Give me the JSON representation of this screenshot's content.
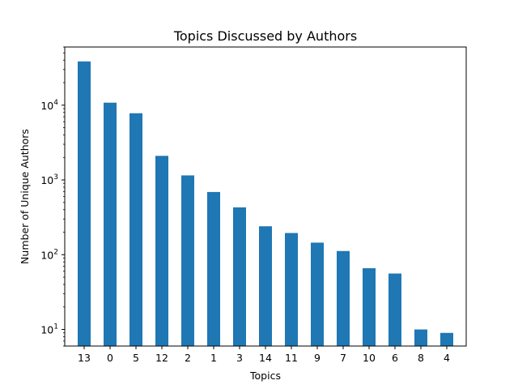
{
  "chart_data": {
    "type": "bar",
    "title": "Topics Discussed by Authors",
    "xlabel": "Topics",
    "ylabel": "Number of Unique Authors",
    "yscale": "log",
    "ylim": [
      6,
      60000
    ],
    "ytick_values": [
      10,
      100,
      1000,
      10000
    ],
    "ytick_base": "10",
    "ytick_exponents": [
      "1",
      "2",
      "3",
      "4"
    ],
    "grid": false,
    "bar_color": "#1f77b4",
    "categories": [
      "13",
      "0",
      "5",
      "12",
      "2",
      "1",
      "3",
      "14",
      "11",
      "9",
      "7",
      "10",
      "6",
      "8",
      "4"
    ],
    "values": [
      38500,
      10800,
      7800,
      2100,
      1150,
      690,
      430,
      240,
      195,
      145,
      112,
      66,
      56,
      10,
      9
    ]
  }
}
